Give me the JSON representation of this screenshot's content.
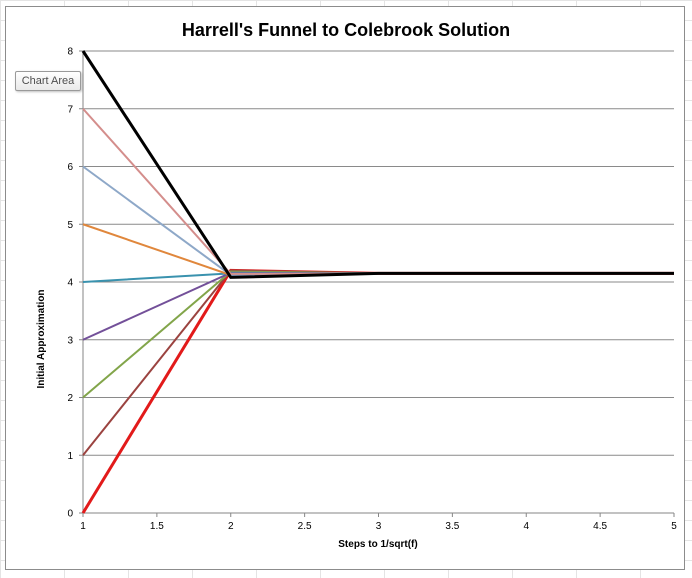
{
  "chart_data": {
    "type": "line",
    "title": "Harrell's Funnel to Colebrook Solution",
    "xlabel": "Steps to 1/sqrt(f)",
    "ylabel": "Initial Approximation",
    "xlim": [
      1,
      5
    ],
    "ylim": [
      0,
      8
    ],
    "xticks": [
      "1",
      "1.5",
      "2",
      "2.5",
      "3",
      "3.5",
      "4",
      "4.5",
      "5"
    ],
    "yticks": [
      "0",
      "1",
      "2",
      "3",
      "4",
      "5",
      "6",
      "7",
      "8"
    ],
    "grid": "horizontal",
    "x": [
      1,
      2,
      3,
      4,
      5
    ],
    "series": [
      {
        "values": [
          0,
          4.2,
          4.15,
          4.15,
          4.15
        ],
        "color": "#e21a1a",
        "width": 3
      },
      {
        "values": [
          1,
          4.2,
          4.15,
          4.15,
          4.15
        ],
        "color": "#9b4340",
        "width": 2
      },
      {
        "values": [
          2,
          4.18,
          4.15,
          4.15,
          4.15
        ],
        "color": "#82a54a",
        "width": 2
      },
      {
        "values": [
          3,
          4.16,
          4.15,
          4.15,
          4.15
        ],
        "color": "#735099",
        "width": 2
      },
      {
        "values": [
          4,
          4.15,
          4.15,
          4.15,
          4.15
        ],
        "color": "#3a92ae",
        "width": 2
      },
      {
        "values": [
          5,
          4.12,
          4.15,
          4.15,
          4.15
        ],
        "color": "#e0873c",
        "width": 2
      },
      {
        "values": [
          6,
          4.12,
          4.15,
          4.15,
          4.15
        ],
        "color": "#8ea8c8",
        "width": 2
      },
      {
        "values": [
          7,
          4.14,
          4.15,
          4.15,
          4.15
        ],
        "color": "#d48e8c",
        "width": 2
      },
      {
        "values": [
          8,
          4.08,
          4.15,
          4.15,
          4.15
        ],
        "color": "#000000",
        "width": 3
      }
    ]
  },
  "tooltip": {
    "text": "Chart Area"
  }
}
